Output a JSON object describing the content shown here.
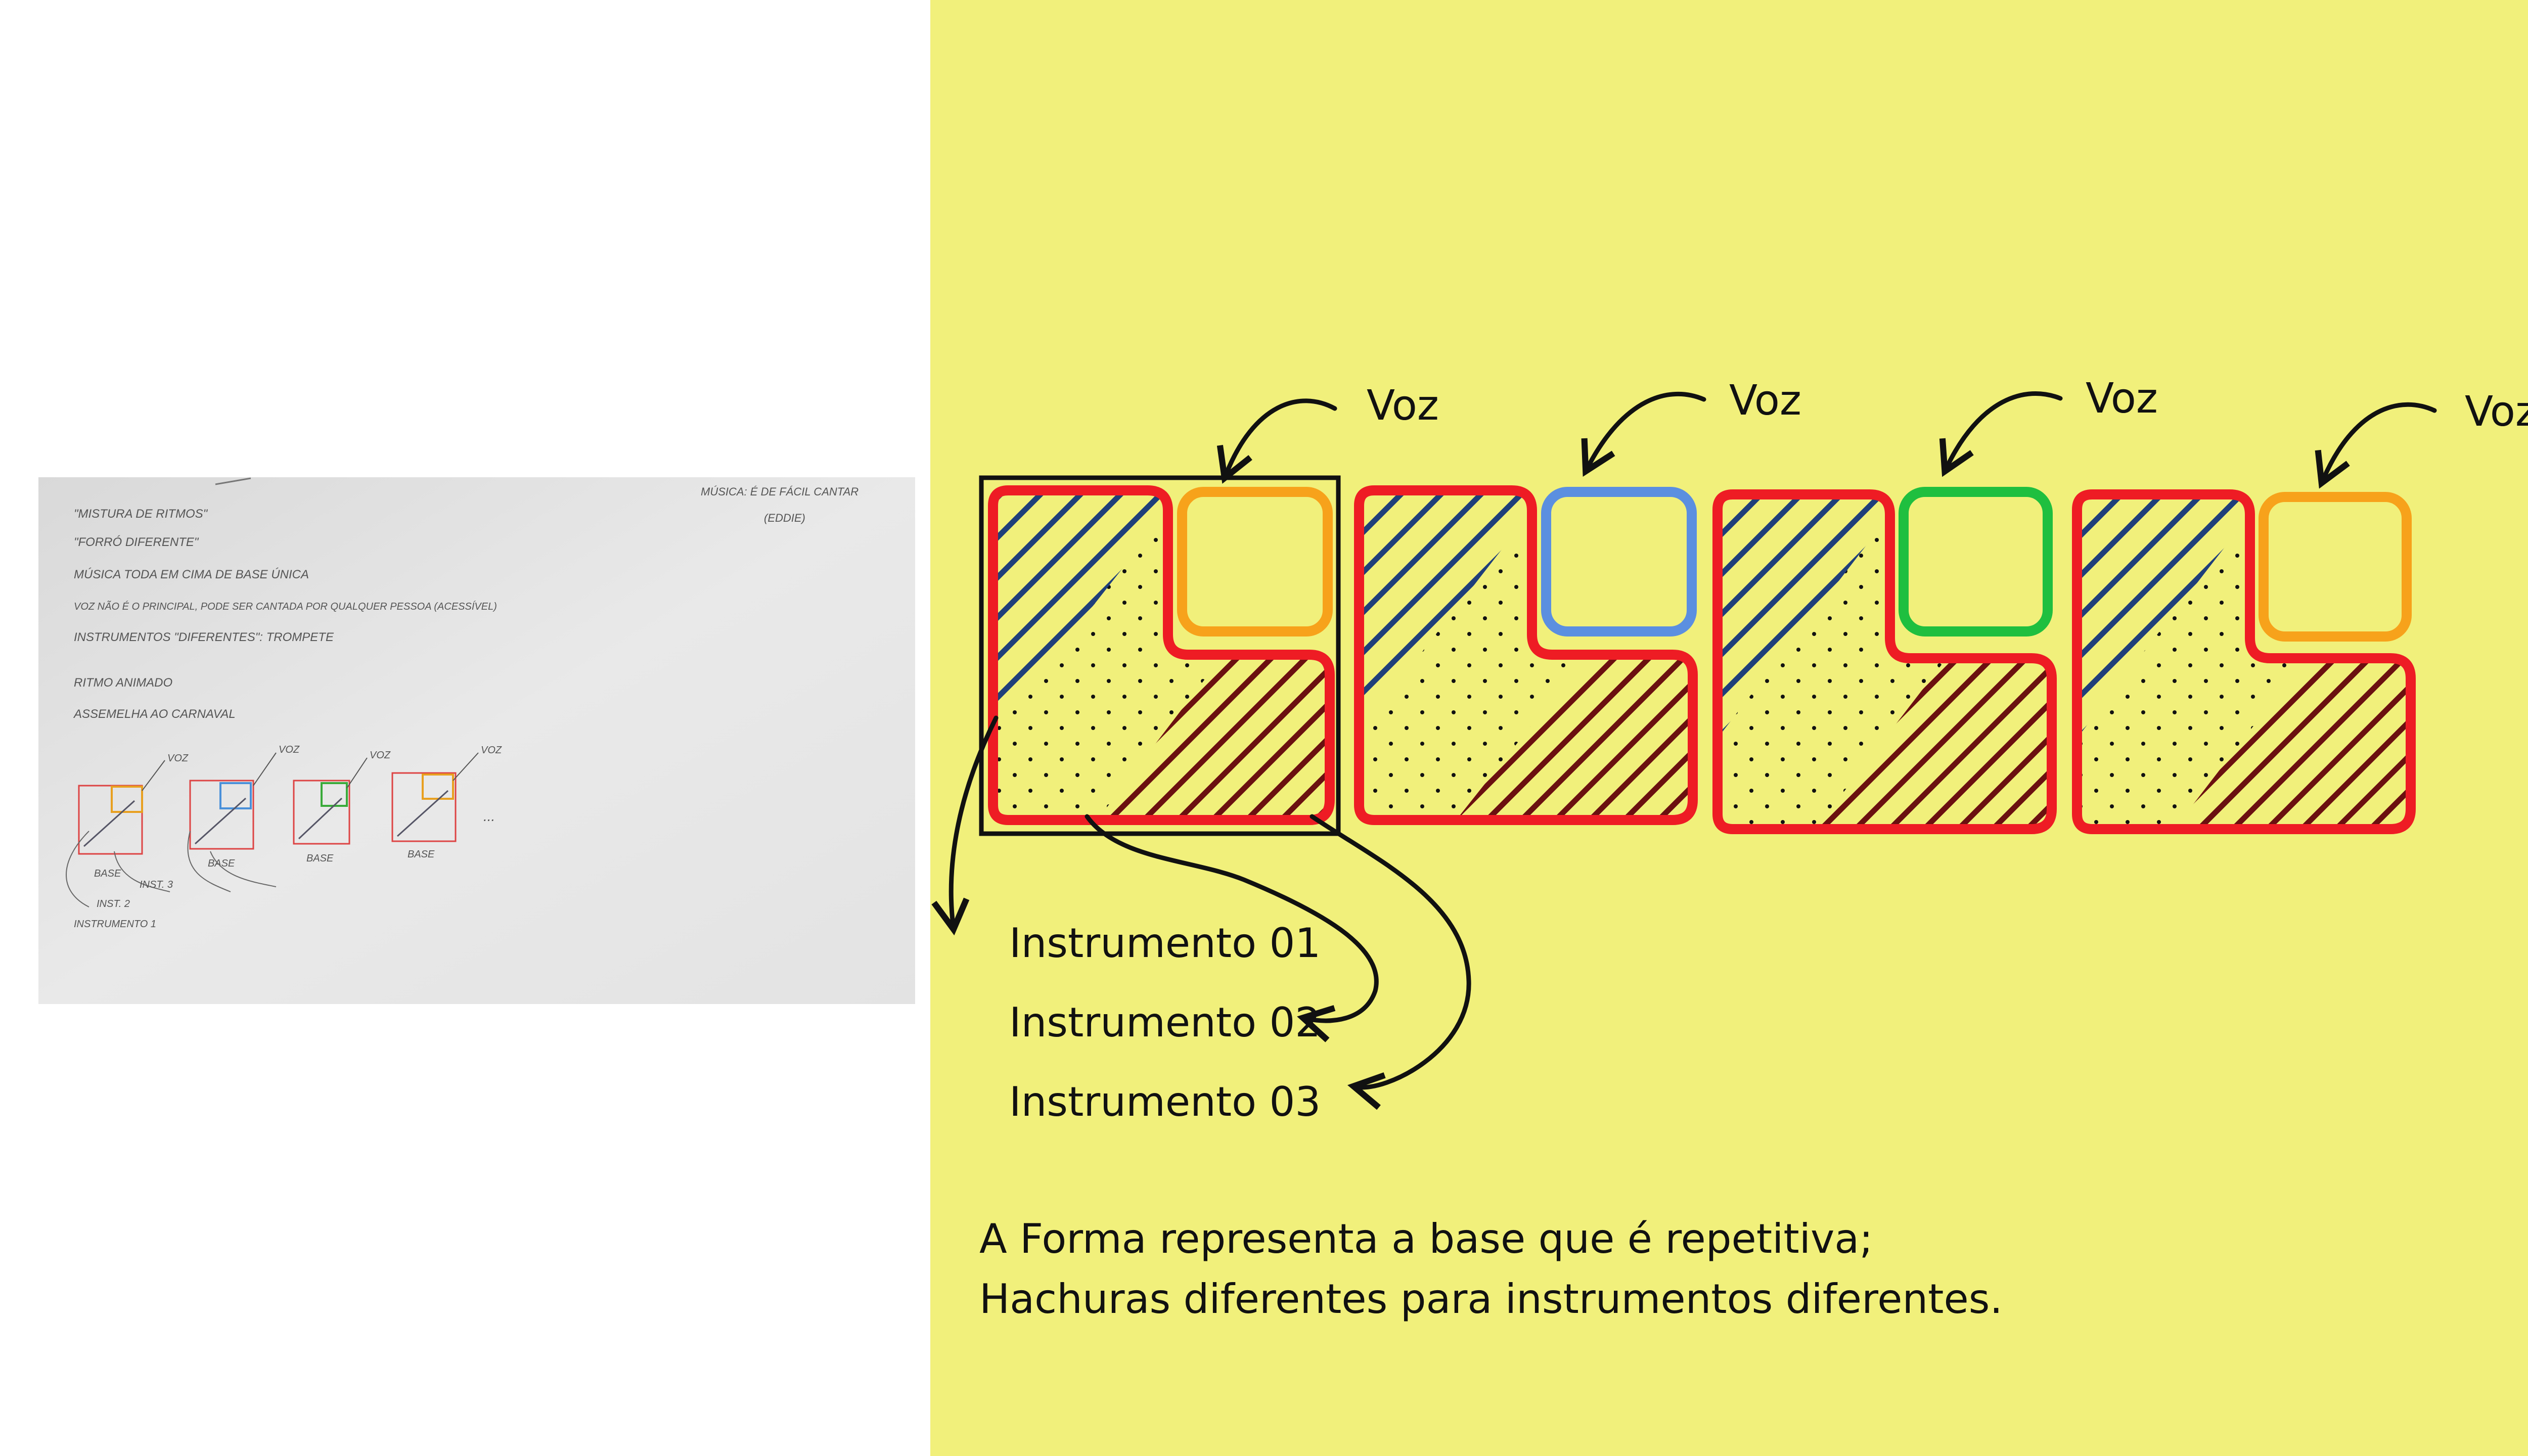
{
  "sketch": {
    "notes_left": [
      "\"MISTURA DE RITMOS\"",
      "\"FORRÓ DIFERENTE\"",
      "MÚSICA TODA EM CIMA DE BASE ÚNICA",
      "VOZ NÃO É O PRINCIPAL, PODE SER CANTADA POR QUALQUER PESSOA (ACESSÍVEL)",
      "INSTRUMENTOS \"DIFERENTES\": TROMPETE",
      "RITMO ANIMADO",
      "ASSEMELHA AO CARNAVAL"
    ],
    "notes_right": [
      "MÚSICA: É DE FÁCIL CANTAR",
      "(EDDIE)"
    ],
    "box_voice_labels": [
      "VOZ",
      "VOZ",
      "VOZ",
      "VOZ"
    ],
    "box_base_labels": [
      "BASE",
      "BASE",
      "BASE",
      "BASE"
    ],
    "ellipsis": "...",
    "inst_labels": [
      "INST. 3",
      "INST. 2",
      "INSTRUMENTO 1"
    ],
    "box_colors": [
      "#e8a020",
      "#4a90d9",
      "#3aaa3a",
      "#e8a020"
    ]
  },
  "diagram": {
    "voice_labels": [
      "Voz",
      "Voz",
      "Voz",
      "Voz"
    ],
    "voice_colors": [
      "#f7a21b",
      "#5b8fe0",
      "#1fbf3f",
      "#f7a21b"
    ],
    "shape_border_color": "#ee1c24",
    "background_color": "#f1f07b",
    "instruments": [
      "Instrumento 01",
      "Instrumento 02",
      "Instrumento 03"
    ],
    "hatch_colors": {
      "instrument_01": "#1f3f7a",
      "instrument_03": "#6b1010"
    },
    "legend": [
      "A Forma representa a base que é repetitiva;",
      "Hachuras diferentes para instrumentos diferentes."
    ]
  }
}
